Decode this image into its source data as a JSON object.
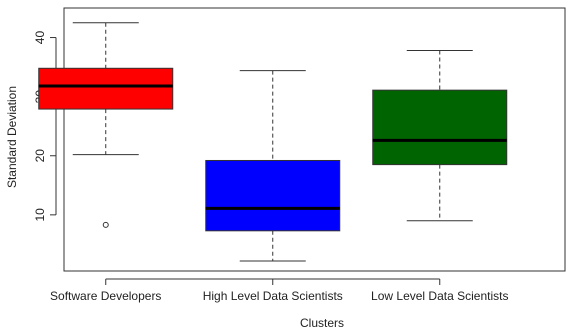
{
  "chart_data": {
    "type": "boxplot",
    "title": "",
    "xlabel": "Clusters",
    "ylabel": "Standard Deviation",
    "ylim": [
      0.5,
      45
    ],
    "y_ticks": [
      10,
      20,
      30,
      40
    ],
    "categories": [
      "Software Developers",
      "High Level Data Scientists",
      "Low Level Data Scientists"
    ],
    "boxes": [
      {
        "min": 20.2,
        "q1": 27.9,
        "median": 31.8,
        "q3": 34.8,
        "max": 42.5,
        "outliers": [
          8.3
        ],
        "color": "#ff0000"
      },
      {
        "min": 2.2,
        "q1": 7.3,
        "median": 11.1,
        "q3": 19.2,
        "max": 34.4,
        "outliers": [],
        "color": "#0000ff"
      },
      {
        "min": 9.0,
        "q1": 18.5,
        "median": 22.6,
        "q3": 31.1,
        "max": 37.8,
        "outliers": [],
        "color": "#006400"
      }
    ],
    "grid": false,
    "legend": "none"
  }
}
